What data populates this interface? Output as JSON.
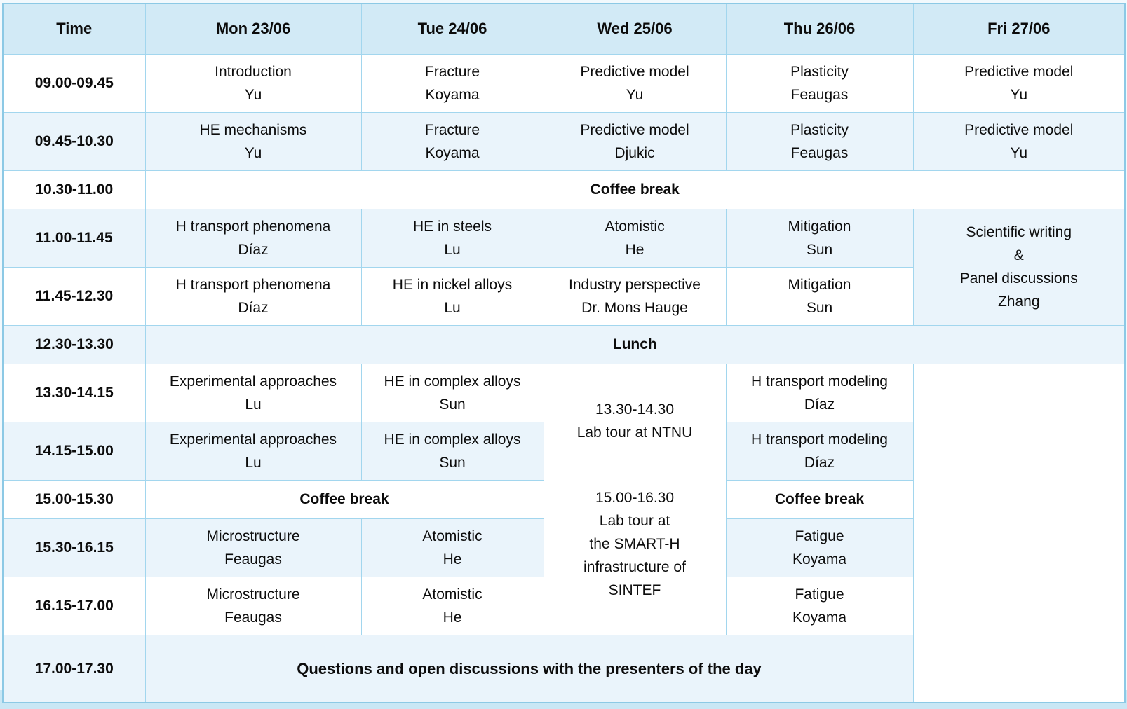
{
  "header": {
    "cols": [
      "Time",
      "Mon 23/06",
      "Tue 24/06",
      "Wed 25/06",
      "Thu 26/06",
      "Fri 27/06"
    ]
  },
  "rows": {
    "r1": {
      "time": "09.00-09.45",
      "mon": [
        "Introduction",
        "Yu"
      ],
      "tue": [
        "Fracture",
        "Koyama"
      ],
      "wed": [
        "Predictive model",
        "Yu"
      ],
      "thu": [
        "Plasticity",
        "Feaugas"
      ],
      "fri": [
        "Predictive model",
        "Yu"
      ]
    },
    "r2": {
      "time": "09.45-10.30",
      "mon": [
        "HE mechanisms",
        "Yu"
      ],
      "tue": [
        "Fracture",
        "Koyama"
      ],
      "wed": [
        "Predictive model",
        "Djukic"
      ],
      "thu": [
        "Plasticity",
        "Feaugas"
      ],
      "fri": [
        "Predictive model",
        "Yu"
      ]
    },
    "r3": {
      "time": "10.30-11.00",
      "label": "Coffee break"
    },
    "r4": {
      "time": "11.00-11.45",
      "mon": [
        "H transport phenomena",
        "Díaz"
      ],
      "tue": [
        "HE in steels",
        "Lu"
      ],
      "wed": [
        "Atomistic",
        "He"
      ],
      "thu": [
        "Mitigation",
        "Sun"
      ],
      "fri": [
        "Scientific writing",
        "&",
        "Panel discussions",
        "Zhang"
      ]
    },
    "r5": {
      "time": "11.45-12.30",
      "mon": [
        "H transport phenomena",
        "Díaz"
      ],
      "tue": [
        "HE in nickel alloys",
        "Lu"
      ],
      "wed": [
        "Industry perspective",
        "Dr. Mons Hauge"
      ],
      "thu": [
        "Mitigation",
        "Sun"
      ]
    },
    "r6": {
      "time": "12.30-13.30",
      "label": "Lunch"
    },
    "r7": {
      "time": "13.30-14.15",
      "mon": [
        "Experimental approaches",
        "Lu"
      ],
      "tue": [
        "HE in complex alloys",
        "Sun"
      ],
      "wed_tour": {
        "block1": [
          "13.30-14.30",
          "Lab tour at NTNU"
        ],
        "block2": [
          "15.00-16.30",
          "Lab tour at",
          "the SMART-H",
          "infrastructure of",
          "SINTEF"
        ]
      },
      "thu": [
        "H transport modeling",
        "Díaz"
      ]
    },
    "r8": {
      "time": "14.15-15.00",
      "mon": [
        "Experimental approaches",
        "Lu"
      ],
      "tue": [
        "HE in complex alloys",
        "Sun"
      ],
      "thu": [
        "H transport modeling",
        "Díaz"
      ]
    },
    "r9": {
      "time": "15.00-15.30",
      "montue": "Coffee break",
      "thu": "Coffee break"
    },
    "r10": {
      "time": "15.30-16.15",
      "mon": [
        "Microstructure",
        "Feaugas"
      ],
      "tue": [
        "Atomistic",
        "He"
      ],
      "thu": [
        "Fatigue",
        "Koyama"
      ]
    },
    "r11": {
      "time": "16.15-17.00",
      "mon": [
        "Microstructure",
        "Feaugas"
      ],
      "tue": [
        "Atomistic",
        "He"
      ],
      "thu": [
        "Fatigue",
        "Koyama"
      ]
    },
    "r12": {
      "time": "17.00-17.30",
      "label": "Questions and open discussions with the presenters of the day"
    }
  },
  "colors": {
    "header_bg": "#d2eaf6",
    "row_bg": "#ffffff",
    "row_alt_bg": "#eaf4fb",
    "grid_line": "#a2d6ee",
    "outer_border": "#8cc9e5"
  }
}
